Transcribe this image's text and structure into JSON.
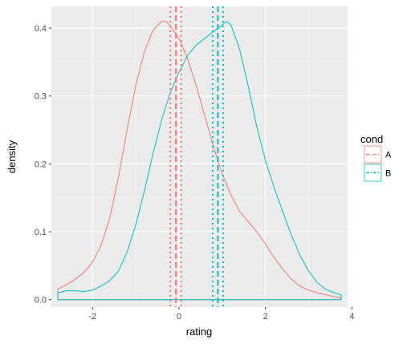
{
  "chart_data": {
    "type": "line",
    "title": "",
    "xlabel": "rating",
    "ylabel": "density",
    "xlim": [
      -2.95,
      3.9
    ],
    "ylim": [
      -0.011,
      0.432
    ],
    "xticks": [
      -2,
      0,
      2,
      4
    ],
    "xtick_labels": [
      "-2",
      "0",
      "2",
      "4"
    ],
    "yticks": [
      0.0,
      0.1,
      0.2,
      0.3,
      0.4
    ],
    "ytick_labels": [
      "0.0",
      "0.1",
      "0.2",
      "0.3",
      "0.4"
    ],
    "grid": true,
    "legend": {
      "title": "cond",
      "position": "right",
      "entries": [
        "A",
        "B"
      ]
    },
    "colors": {
      "panel_background": "#ebebeb",
      "grid_major": "#ffffff",
      "grid_minor": "#f5f5f5",
      "A": "#f8766d",
      "B": "#00bfc4"
    },
    "series": [
      {
        "name": "A",
        "x": [
          -2.8,
          -2.6,
          -2.4,
          -2.2,
          -2.0,
          -1.8,
          -1.6,
          -1.4,
          -1.2,
          -1.0,
          -0.8,
          -0.6,
          -0.4,
          -0.3,
          -0.2,
          0.0,
          0.2,
          0.4,
          0.6,
          0.8,
          1.0,
          1.2,
          1.4,
          1.6,
          1.8,
          2.0,
          2.2,
          2.4,
          2.6,
          2.8,
          3.0,
          3.2,
          3.4,
          3.6,
          3.75
        ],
        "y": [
          0.016,
          0.022,
          0.03,
          0.04,
          0.055,
          0.08,
          0.12,
          0.18,
          0.25,
          0.315,
          0.365,
          0.397,
          0.41,
          0.41,
          0.403,
          0.385,
          0.355,
          0.315,
          0.27,
          0.225,
          0.185,
          0.155,
          0.13,
          0.115,
          0.1,
          0.082,
          0.062,
          0.045,
          0.03,
          0.02,
          0.014,
          0.01,
          0.007,
          0.004,
          0.002
        ],
        "vlines": [
          {
            "x": -0.2,
            "style": "dotted"
          },
          {
            "x": -0.07,
            "style": "dashed"
          },
          {
            "x": 0.05,
            "style": "dotted"
          }
        ]
      },
      {
        "name": "B",
        "x": [
          -2.8,
          -2.6,
          -2.4,
          -2.2,
          -2.0,
          -1.8,
          -1.6,
          -1.4,
          -1.2,
          -1.0,
          -0.8,
          -0.6,
          -0.4,
          -0.2,
          0.0,
          0.2,
          0.4,
          0.6,
          0.8,
          1.0,
          1.1,
          1.2,
          1.4,
          1.6,
          1.8,
          2.0,
          2.2,
          2.4,
          2.6,
          2.8,
          3.0,
          3.2,
          3.4,
          3.6,
          3.75
        ],
        "y": [
          0.01,
          0.013,
          0.013,
          0.012,
          0.014,
          0.02,
          0.028,
          0.042,
          0.07,
          0.11,
          0.16,
          0.215,
          0.265,
          0.305,
          0.335,
          0.36,
          0.375,
          0.385,
          0.395,
          0.405,
          0.41,
          0.405,
          0.37,
          0.315,
          0.255,
          0.205,
          0.165,
          0.13,
          0.095,
          0.065,
          0.042,
          0.025,
          0.015,
          0.01,
          0.007
        ],
        "vlines": [
          {
            "x": 0.78,
            "style": "dotted"
          },
          {
            "x": 0.9,
            "style": "dashed"
          },
          {
            "x": 1.02,
            "style": "dotted"
          }
        ]
      }
    ]
  }
}
